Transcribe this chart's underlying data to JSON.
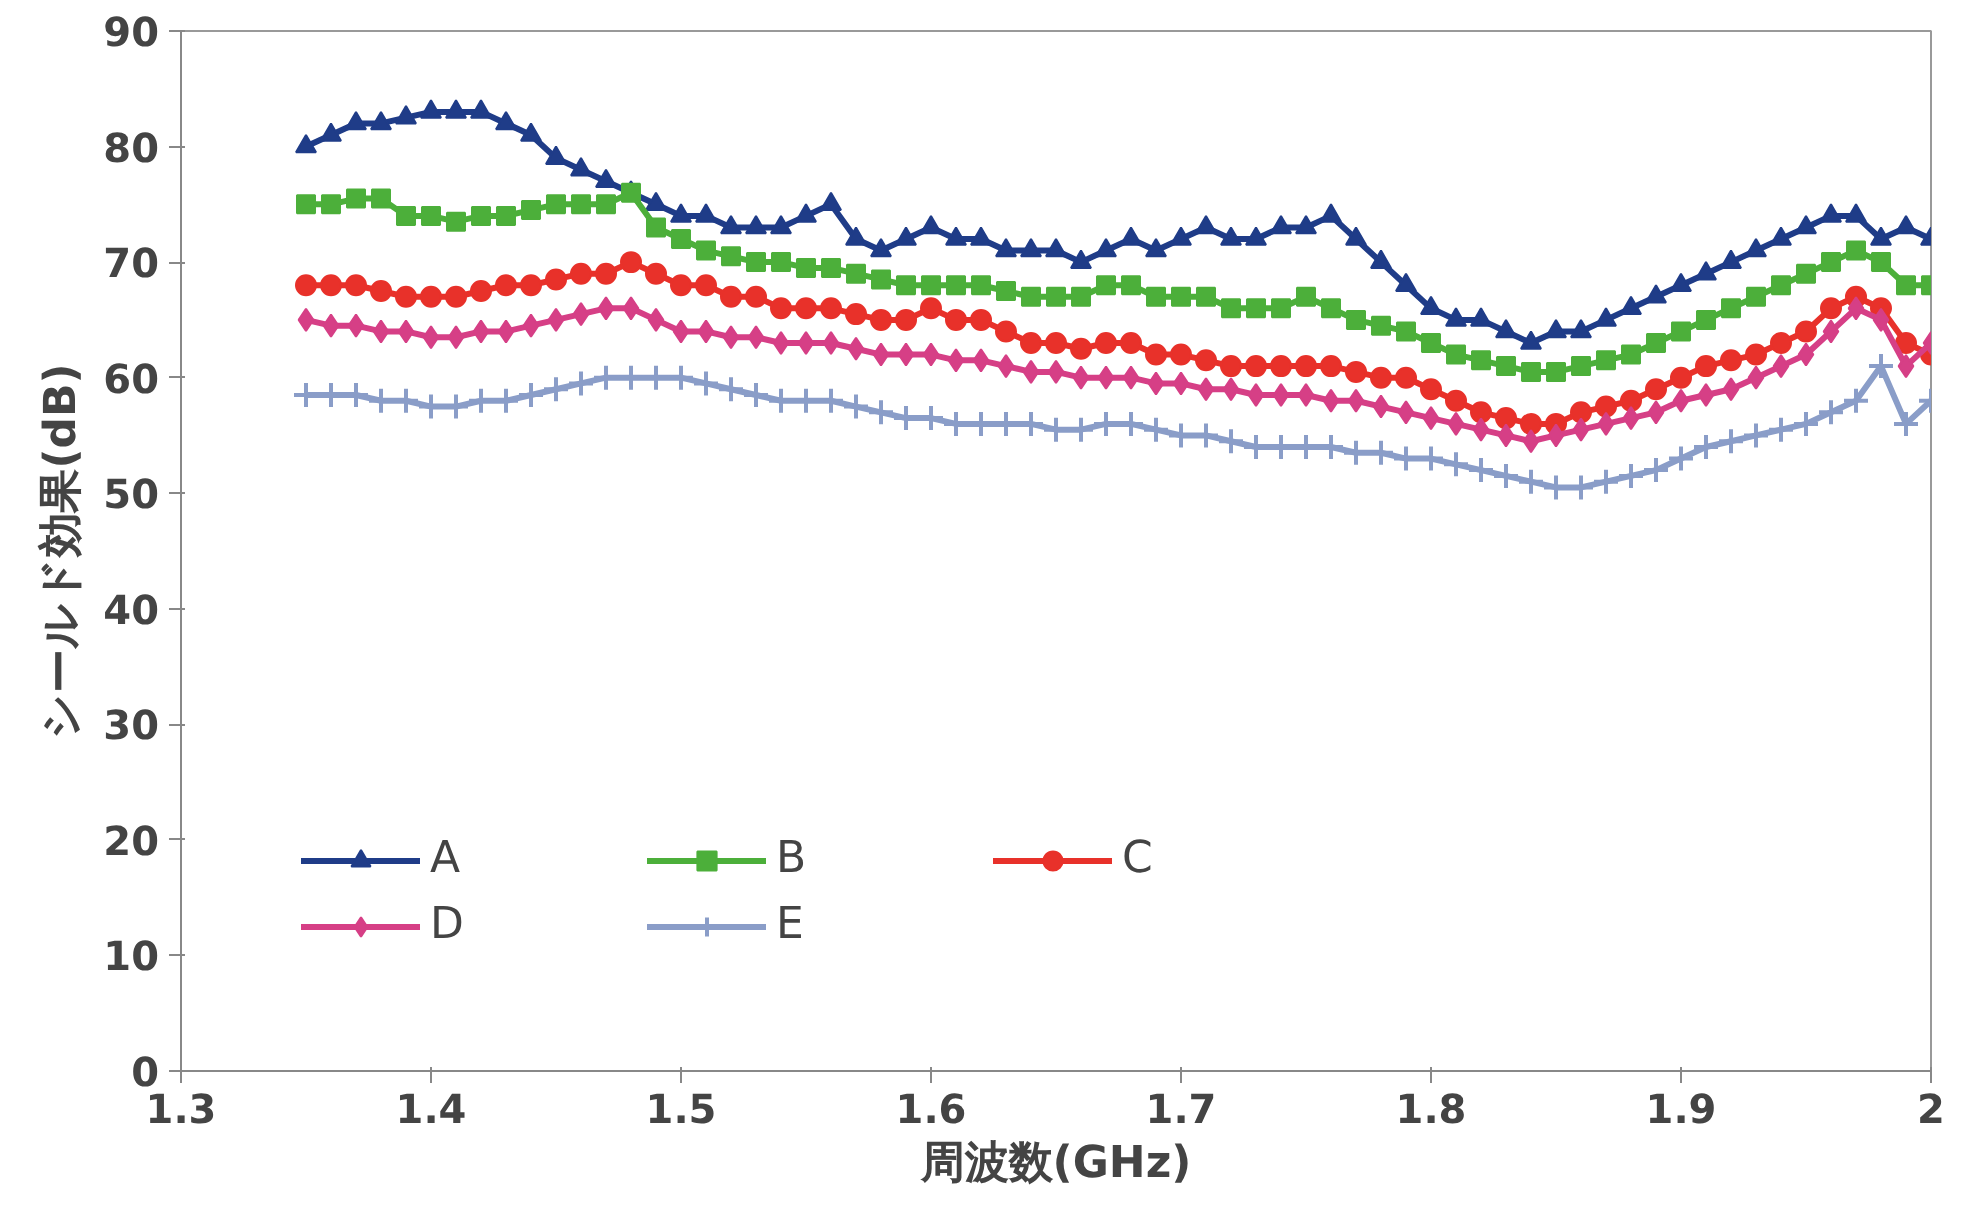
{
  "chart_data": {
    "type": "line",
    "xlabel": "周波数(GHz)",
    "ylabel": "シールド効果(dB)",
    "x": [
      1.35,
      1.36,
      1.37,
      1.38,
      1.39,
      1.4,
      1.41,
      1.42,
      1.43,
      1.44,
      1.45,
      1.46,
      1.47,
      1.48,
      1.49,
      1.5,
      1.51,
      1.52,
      1.53,
      1.54,
      1.55,
      1.56,
      1.57,
      1.58,
      1.59,
      1.6,
      1.61,
      1.62,
      1.63,
      1.64,
      1.65,
      1.66,
      1.67,
      1.68,
      1.69,
      1.7,
      1.71,
      1.72,
      1.73,
      1.74,
      1.75,
      1.76,
      1.77,
      1.78,
      1.79,
      1.8,
      1.81,
      1.82,
      1.83,
      1.84,
      1.85,
      1.86,
      1.87,
      1.88,
      1.89,
      1.9,
      1.91,
      1.92,
      1.93,
      1.94,
      1.95,
      1.96,
      1.97,
      1.98,
      1.99,
      2.0
    ],
    "series": [
      {
        "name": "A",
        "color": "#1f3c88",
        "marker": "triangle",
        "values": [
          80,
          81,
          82,
          82,
          82.5,
          83,
          83,
          83,
          82,
          81,
          79,
          78,
          77,
          76,
          75,
          74,
          74,
          73,
          73,
          73,
          74,
          75,
          72,
          71,
          72,
          73,
          72,
          72,
          71,
          71,
          71,
          70,
          71,
          72,
          71,
          72,
          73,
          72,
          72,
          73,
          73,
          74,
          72,
          70,
          68,
          66,
          65,
          65,
          64,
          63,
          64,
          64,
          65,
          66,
          67,
          68,
          69,
          70,
          71,
          72,
          73,
          74,
          74,
          72,
          73,
          72
        ]
      },
      {
        "name": "B",
        "color": "#4caf3a",
        "marker": "square",
        "values": [
          75,
          75,
          75.5,
          75.5,
          74,
          74,
          73.5,
          74,
          74,
          74.5,
          75,
          75,
          75,
          76,
          73,
          72,
          71,
          70.5,
          70,
          70,
          69.5,
          69.5,
          69,
          68.5,
          68,
          68,
          68,
          68,
          67.5,
          67,
          67,
          67,
          68,
          68,
          67,
          67,
          67,
          66,
          66,
          66,
          67,
          66,
          65,
          64.5,
          64,
          63,
          62,
          61.5,
          61,
          60.5,
          60.5,
          61,
          61.5,
          62,
          63,
          64,
          65,
          66,
          67,
          68,
          69,
          70,
          71,
          70,
          68,
          68
        ]
      },
      {
        "name": "C",
        "color": "#e8312a",
        "marker": "circle",
        "values": [
          68,
          68,
          68,
          67.5,
          67,
          67,
          67,
          67.5,
          68,
          68,
          68.5,
          69,
          69,
          70,
          69,
          68,
          68,
          67,
          67,
          66,
          66,
          66,
          65.5,
          65,
          65,
          66,
          65,
          65,
          64,
          63,
          63,
          62.5,
          63,
          63,
          62,
          62,
          61.5,
          61,
          61,
          61,
          61,
          61,
          60.5,
          60,
          60,
          59,
          58,
          57,
          56.5,
          56,
          56,
          57,
          57.5,
          58,
          59,
          60,
          61,
          61.5,
          62,
          63,
          64,
          66,
          67,
          66,
          63,
          62
        ]
      },
      {
        "name": "D",
        "color": "#d63f86",
        "marker": "diamond",
        "values": [
          65,
          64.5,
          64.5,
          64,
          64,
          63.5,
          63.5,
          64,
          64,
          64.5,
          65,
          65.5,
          66,
          66,
          65,
          64,
          64,
          63.5,
          63.5,
          63,
          63,
          63,
          62.5,
          62,
          62,
          62,
          61.5,
          61.5,
          61,
          60.5,
          60.5,
          60,
          60,
          60,
          59.5,
          59.5,
          59,
          59,
          58.5,
          58.5,
          58.5,
          58,
          58,
          57.5,
          57,
          56.5,
          56,
          55.5,
          55,
          54.5,
          55,
          55.5,
          56,
          56.5,
          57,
          58,
          58.5,
          59,
          60,
          61,
          62,
          64,
          66,
          65,
          61,
          63
        ]
      },
      {
        "name": "E",
        "color": "#8a9dc8",
        "marker": "cross",
        "values": [
          58.5,
          58.5,
          58.5,
          58,
          58,
          57.5,
          57.5,
          58,
          58,
          58.5,
          59,
          59.5,
          60,
          60,
          60,
          60,
          59.5,
          59,
          58.5,
          58,
          58,
          58,
          57.5,
          57,
          56.5,
          56.5,
          56,
          56,
          56,
          56,
          55.5,
          55.5,
          56,
          56,
          55.5,
          55,
          55,
          54.5,
          54,
          54,
          54,
          54,
          53.5,
          53.5,
          53,
          53,
          52.5,
          52,
          51.5,
          51,
          50.5,
          50.5,
          51,
          51.5,
          52,
          53,
          54,
          54.5,
          55,
          55.5,
          56,
          57,
          58,
          61,
          56,
          58
        ]
      }
    ],
    "xlim": [
      1.3,
      2.0
    ],
    "xticks": [
      1.3,
      1.4,
      1.5,
      1.6,
      1.7,
      1.8,
      1.9,
      2
    ],
    "ylim": [
      0,
      90
    ],
    "yticks": [
      0,
      10,
      20,
      30,
      40,
      50,
      60,
      70,
      80,
      90
    ],
    "grid": false,
    "legend": "bottom left",
    "line_style": "solid"
  }
}
